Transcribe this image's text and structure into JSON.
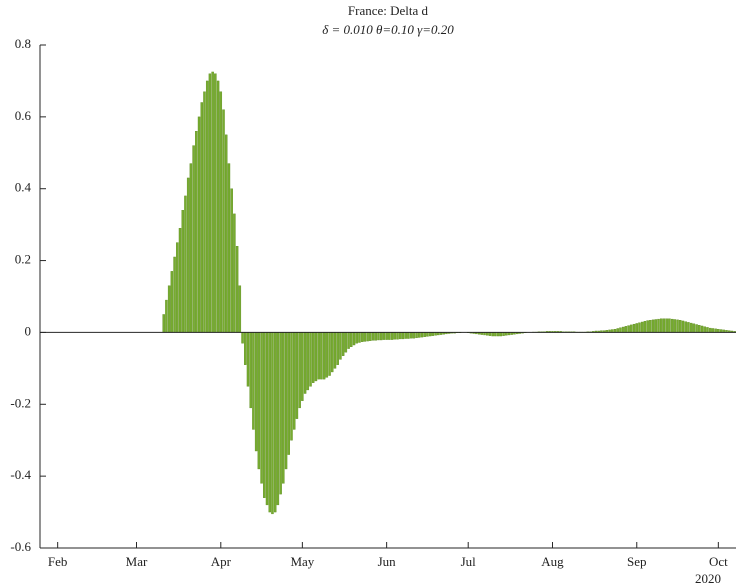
{
  "chart_data": {
    "type": "bar",
    "title": "France: Delta d",
    "subtitle": "δ = 0.010  θ=0.10  γ=0.20",
    "x_year_label": "2020",
    "color": "#77ac30",
    "categories": [
      null,
      null,
      null,
      null,
      null,
      null,
      "Feb",
      null,
      null,
      null,
      null,
      null,
      null,
      null,
      null,
      null,
      null,
      null,
      null,
      null,
      null,
      null,
      null,
      null,
      null,
      null,
      null,
      null,
      null,
      null,
      null,
      null,
      null,
      null,
      null,
      "Mar",
      null,
      null,
      null,
      null,
      null,
      null,
      null,
      null,
      null,
      null,
      null,
      null,
      null,
      null,
      null,
      null,
      null,
      null,
      null,
      null,
      null,
      null,
      null,
      null,
      null,
      null,
      null,
      null,
      null,
      null,
      "Apr",
      null,
      null,
      null,
      null,
      null,
      null,
      null,
      null,
      null,
      null,
      null,
      null,
      null,
      null,
      null,
      null,
      null,
      null,
      null,
      null,
      null,
      null,
      null,
      null,
      null,
      null,
      null,
      null,
      null,
      "May",
      null,
      null,
      null,
      null,
      null,
      null,
      null,
      null,
      null,
      null,
      null,
      null,
      null,
      null,
      null,
      null,
      null,
      null,
      null,
      null,
      null,
      null,
      null,
      null,
      null,
      null,
      null,
      null,
      null,
      null,
      "Jun",
      null,
      null,
      null,
      null,
      null,
      null,
      null,
      null,
      null,
      null,
      null,
      null,
      null,
      null,
      null,
      null,
      null,
      null,
      null,
      null,
      null,
      null,
      null,
      null,
      null,
      null,
      null,
      null,
      null,
      "Jul",
      null,
      null,
      null,
      null,
      null,
      null,
      null,
      null,
      null,
      null,
      null,
      null,
      null,
      null,
      null,
      null,
      null,
      null,
      null,
      null,
      null,
      null,
      null,
      null,
      null,
      null,
      null,
      null,
      null,
      null,
      "Aug",
      null,
      null,
      null,
      null,
      null,
      null,
      null,
      null,
      null,
      null,
      null,
      null,
      null,
      null,
      null,
      null,
      null,
      null,
      null,
      null,
      null,
      null,
      null,
      null,
      null,
      null,
      null,
      null,
      null,
      null,
      "Sep",
      null,
      null,
      null,
      null,
      null,
      null,
      null,
      null,
      null,
      null,
      null,
      null,
      null,
      null,
      null,
      null,
      null,
      null,
      null,
      null,
      null,
      null,
      null,
      null,
      null,
      null,
      null,
      null,
      null,
      "Oct",
      null,
      null,
      null,
      null,
      null,
      null
    ],
    "values": [
      0,
      0,
      0,
      0,
      0,
      0,
      0,
      0,
      0,
      0,
      0,
      0,
      0,
      0,
      0,
      0,
      0,
      0,
      0,
      0,
      0,
      0,
      0,
      0,
      0,
      0,
      0,
      0,
      0,
      0,
      0,
      0,
      0,
      0,
      0,
      0,
      0,
      0,
      0,
      0,
      0,
      0,
      0,
      0,
      0,
      0.05,
      0.09,
      0.13,
      0.17,
      0.21,
      0.25,
      0.29,
      0.34,
      0.38,
      0.43,
      0.47,
      0.52,
      0.56,
      0.6,
      0.64,
      0.67,
      0.7,
      0.72,
      0.725,
      0.72,
      0.7,
      0.67,
      0.62,
      0.55,
      0.47,
      0.4,
      0.33,
      0.24,
      0.13,
      -0.03,
      -0.09,
      -0.15,
      -0.21,
      -0.27,
      -0.33,
      -0.38,
      -0.42,
      -0.46,
      -0.48,
      -0.5,
      -0.505,
      -0.5,
      -0.48,
      -0.45,
      -0.42,
      -0.38,
      -0.34,
      -0.3,
      -0.27,
      -0.24,
      -0.21,
      -0.19,
      -0.17,
      -0.16,
      -0.15,
      -0.14,
      -0.135,
      -0.13,
      -0.13,
      -0.13,
      -0.125,
      -0.12,
      -0.11,
      -0.1,
      -0.09,
      -0.075,
      -0.065,
      -0.055,
      -0.045,
      -0.04,
      -0.035,
      -0.03,
      -0.028,
      -0.026,
      -0.025,
      -0.024,
      -0.023,
      -0.022,
      -0.022,
      -0.021,
      -0.021,
      -0.02,
      -0.02,
      -0.02,
      -0.02,
      -0.019,
      -0.019,
      -0.018,
      -0.018,
      -0.017,
      -0.017,
      -0.016,
      -0.016,
      -0.015,
      -0.014,
      -0.013,
      -0.012,
      -0.011,
      -0.01,
      -0.009,
      -0.008,
      -0.007,
      -0.006,
      -0.005,
      -0.004,
      -0.003,
      -0.002,
      -0.002,
      -0.001,
      -0.001,
      0,
      0,
      -0.001,
      -0.002,
      -0.003,
      -0.004,
      -0.005,
      -0.006,
      -0.007,
      -0.008,
      -0.009,
      -0.01,
      -0.01,
      -0.01,
      -0.01,
      -0.009,
      -0.008,
      -0.007,
      -0.006,
      -0.005,
      -0.004,
      -0.003,
      -0.002,
      -0.001,
      0,
      0,
      0.001,
      0.001,
      0.002,
      0.002,
      0.002,
      0.003,
      0.003,
      0.003,
      0.003,
      0.003,
      0.003,
      0.002,
      0.002,
      0.002,
      0.002,
      0.002,
      0.001,
      0.001,
      0.001,
      0.001,
      0.002,
      0.002,
      0.003,
      0.004,
      0.004,
      0.005,
      0.005,
      0.006,
      0.007,
      0.008,
      0.009,
      0.011,
      0.013,
      0.015,
      0.017,
      0.019,
      0.021,
      0.023,
      0.025,
      0.027,
      0.029,
      0.031,
      0.033,
      0.034,
      0.035,
      0.036,
      0.037,
      0.038,
      0.038,
      0.038,
      0.038,
      0.037,
      0.036,
      0.035,
      0.034,
      0.032,
      0.03,
      0.028,
      0.026,
      0.024,
      0.022,
      0.02,
      0.018,
      0.016,
      0.014,
      0.012,
      0.011,
      0.01,
      0.009,
      0.008,
      0.007,
      0.006,
      0.005,
      0.004,
      0.003
    ],
    "ylim": [
      -0.6,
      0.8
    ],
    "yticks": [
      -0.6,
      -0.4,
      -0.2,
      0,
      0.2,
      0.4,
      0.6,
      0.8
    ]
  }
}
